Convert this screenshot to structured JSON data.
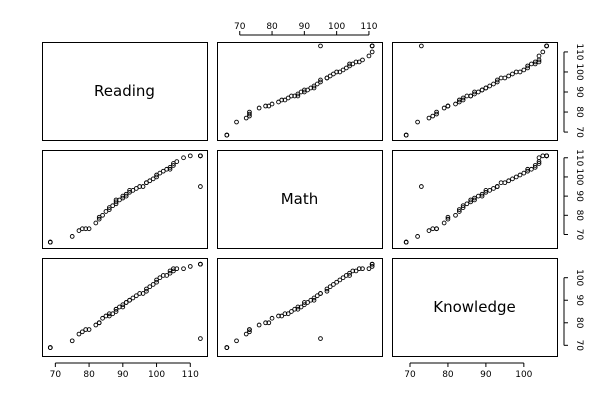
{
  "chart_data": {
    "type": "scatter",
    "subtype": "pairs-scatterplot-matrix",
    "title": "",
    "variables": [
      "Reading",
      "Math",
      "Knowledge"
    ],
    "axes": {
      "Reading": {
        "range": [
          68,
          113
        ],
        "ticks": [
          70,
          80,
          90,
          100,
          110
        ]
      },
      "Math": {
        "range": [
          65,
          112
        ],
        "ticks": [
          70,
          80,
          90,
          100,
          110
        ]
      },
      "Knowledge": {
        "range": [
          67,
          107
        ],
        "ticks": [
          70,
          80,
          90,
          100
        ]
      }
    },
    "axis_placement": {
      "top": [
        1
      ],
      "right": [
        0,
        1,
        2
      ],
      "bottom": [
        0,
        2
      ]
    },
    "grid": false,
    "legend": "none",
    "point_color": "#000000",
    "observations": {
      "Reading": [
        68.5,
        68.5,
        68.5,
        75,
        77,
        78,
        79,
        80,
        82,
        83,
        83,
        84,
        85,
        86,
        86,
        87,
        88,
        88,
        88,
        89,
        90,
        90,
        91,
        91,
        92,
        92,
        93,
        94,
        95,
        96,
        97,
        97,
        98,
        99,
        100,
        100,
        101,
        102,
        103,
        104,
        104,
        105,
        105,
        106,
        108,
        110,
        113,
        113,
        113,
        113
      ],
      "Math": [
        66,
        66,
        66,
        69,
        72,
        73,
        73,
        73,
        76,
        78,
        79,
        80,
        82,
        83,
        84,
        85,
        86,
        87,
        88,
        88,
        89,
        90,
        90,
        91,
        92,
        93,
        93,
        94,
        95,
        95,
        97,
        97,
        98,
        99,
        100,
        101,
        102,
        103,
        104,
        104,
        105,
        106,
        107,
        108,
        110,
        111,
        111,
        111,
        111,
        95
      ],
      "Knowledge": [
        69,
        69,
        69,
        72,
        75,
        76,
        77,
        77,
        79,
        80,
        80,
        82,
        83,
        83,
        84,
        84,
        85,
        86,
        86,
        87,
        87,
        88,
        89,
        89,
        90,
        90,
        91,
        92,
        93,
        93,
        94,
        95,
        96,
        97,
        98,
        99,
        100,
        101,
        101,
        102,
        103,
        103,
        104,
        104,
        104,
        105,
        106,
        106,
        106,
        73
      ]
    }
  }
}
